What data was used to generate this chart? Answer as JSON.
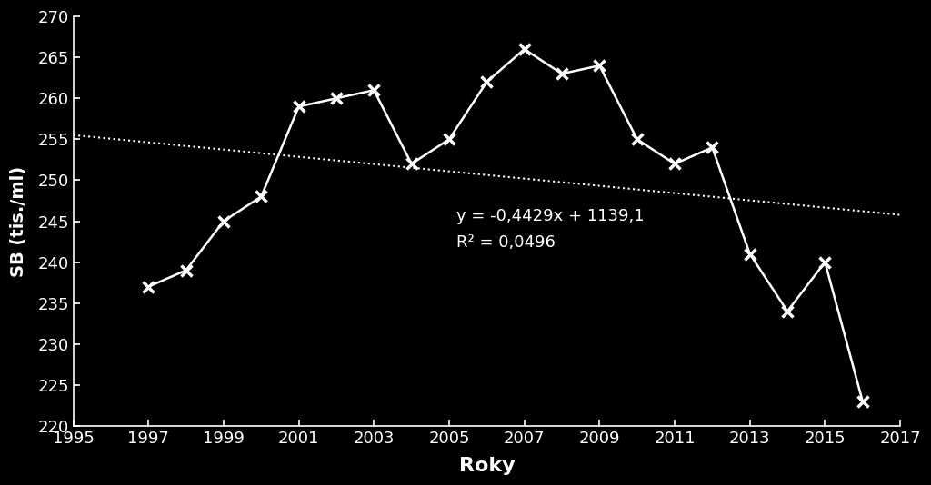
{
  "line_x": [
    1997,
    1998,
    1999,
    2000,
    2001,
    2002,
    2003,
    2004,
    2005,
    2006,
    2007,
    2008,
    2009,
    2010,
    2011,
    2012,
    2013,
    2014,
    2015,
    2016
  ],
  "line_y": [
    237,
    239,
    245,
    248,
    259,
    260,
    261,
    252,
    255,
    262,
    266,
    263,
    264,
    255,
    252,
    254,
    241,
    234,
    240,
    223
  ],
  "trend_slope": -0.4429,
  "trend_intercept": 1139.1,
  "equation_text": "y = -0,4429x + 1139,1",
  "r2_text": "R² = 0,0496",
  "xlabel": "Roky",
  "ylabel": "SB (tis./ml)",
  "xlim": [
    1995,
    2017
  ],
  "ylim": [
    220,
    270
  ],
  "yticks": [
    220,
    225,
    230,
    235,
    240,
    245,
    250,
    255,
    260,
    265,
    270
  ],
  "xticks": [
    1995,
    1997,
    1999,
    2001,
    2003,
    2005,
    2007,
    2009,
    2011,
    2013,
    2015,
    2017
  ],
  "background_color": "#000000",
  "line_color": "#ffffff",
  "trend_color": "#ffffff",
  "text_color": "#ffffff",
  "marker": "x",
  "marker_size": 9,
  "marker_linewidth": 2.5,
  "line_width": 1.8,
  "trend_linewidth": 1.5,
  "eq_x": 2005.2,
  "eq_y": 244,
  "eq_fontsize": 13,
  "tick_label_fontsize": 13,
  "xlabel_fontsize": 16,
  "ylabel_fontsize": 14
}
